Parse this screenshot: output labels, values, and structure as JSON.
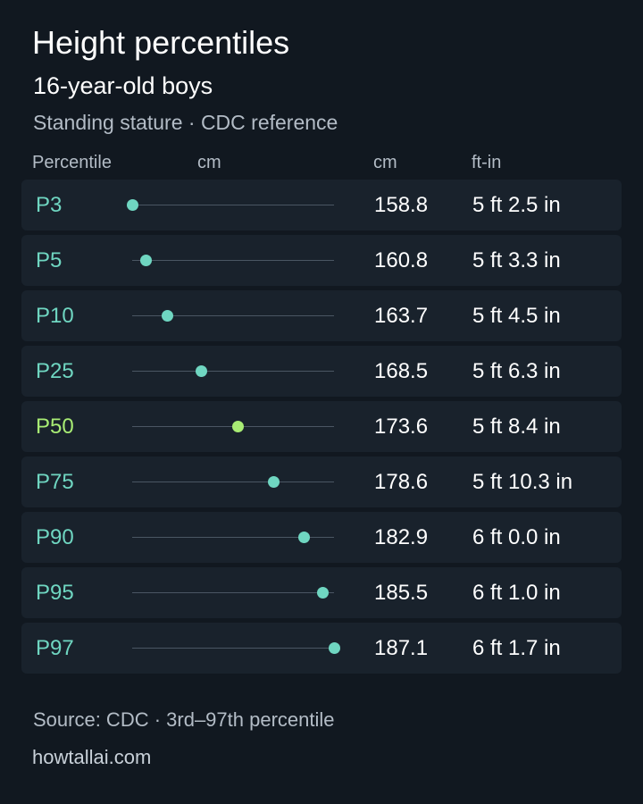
{
  "header": {
    "title": "Height percentiles",
    "subtitle": "16-year-old boys",
    "caption": "Standing stature · CDC reference"
  },
  "columns": {
    "percentile": "Percentile",
    "chart": "cm",
    "cm": "cm",
    "ftin": "ft-in"
  },
  "colors": {
    "accent": "#6fd6c1",
    "highlight": "#a8ec74",
    "background": "#111820",
    "row_background": "#19222c"
  },
  "chart_data": {
    "type": "scatter",
    "title": "Height percentiles",
    "subtitle": "16-year-old boys",
    "xlabel": "cm",
    "xlim": [
      158.8,
      187.1
    ],
    "highlight": "P50",
    "rows": [
      {
        "label": "P3",
        "cm": 158.8,
        "cm_text": "158.8",
        "ftin": "5 ft 2.5 in"
      },
      {
        "label": "P5",
        "cm": 160.8,
        "cm_text": "160.8",
        "ftin": "5 ft 3.3 in"
      },
      {
        "label": "P10",
        "cm": 163.7,
        "cm_text": "163.7",
        "ftin": "5 ft 4.5 in"
      },
      {
        "label": "P25",
        "cm": 168.5,
        "cm_text": "168.5",
        "ftin": "5 ft 6.3 in"
      },
      {
        "label": "P50",
        "cm": 173.6,
        "cm_text": "173.6",
        "ftin": "5 ft 8.4 in"
      },
      {
        "label": "P75",
        "cm": 178.6,
        "cm_text": "178.6",
        "ftin": "5 ft 10.3 in"
      },
      {
        "label": "P90",
        "cm": 182.9,
        "cm_text": "182.9",
        "ftin": "6 ft 0.0 in"
      },
      {
        "label": "P95",
        "cm": 185.5,
        "cm_text": "185.5",
        "ftin": "6 ft 1.0 in"
      },
      {
        "label": "P97",
        "cm": 187.1,
        "cm_text": "187.1",
        "ftin": "6 ft 1.7 in"
      }
    ]
  },
  "footer": {
    "source": "Source: CDC · 3rd–97th percentile",
    "site": "howtallai.com"
  }
}
